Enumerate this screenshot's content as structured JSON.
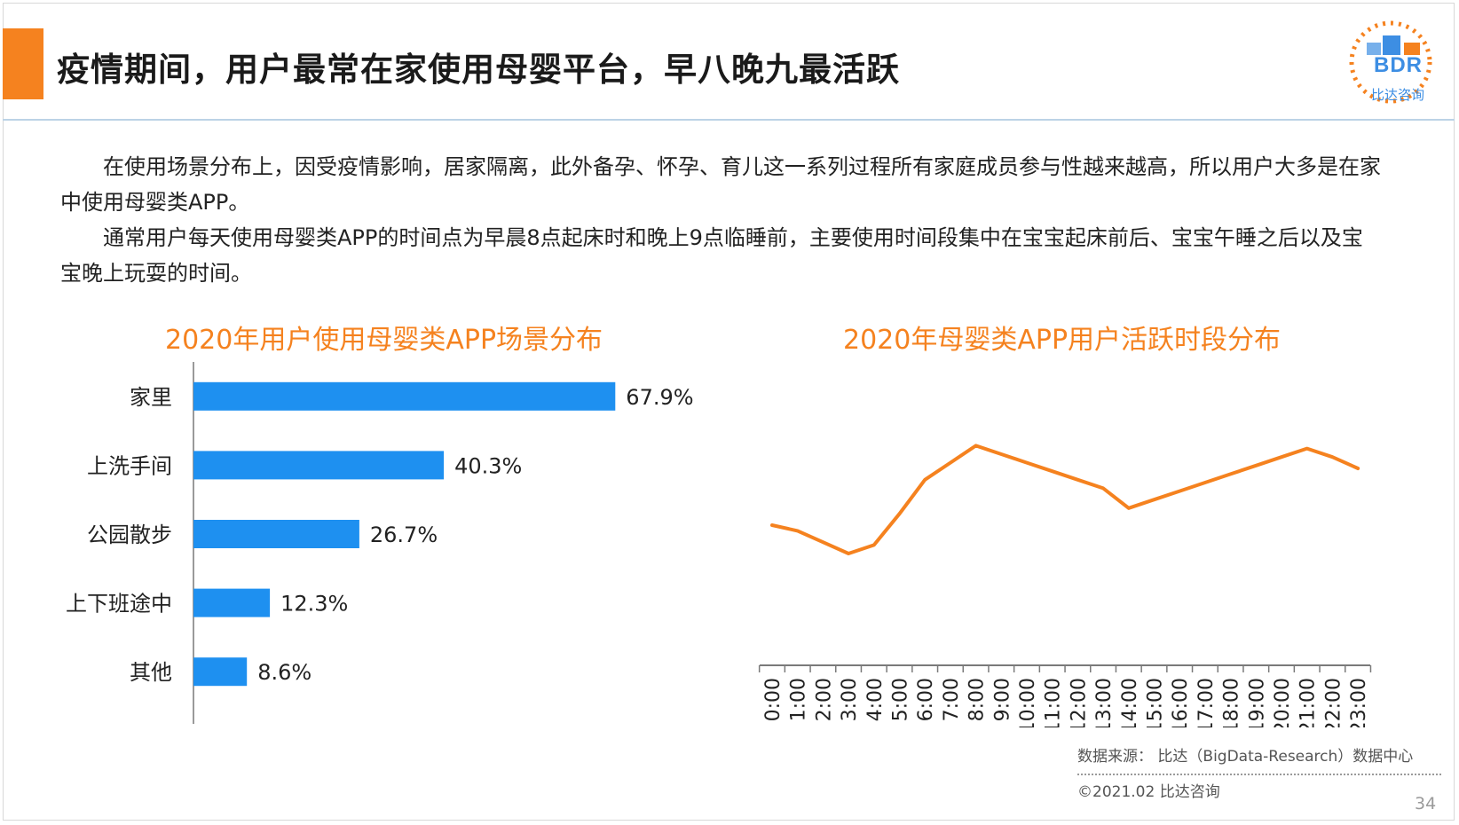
{
  "slide": {
    "title": "疫情期间，用户最常在家使用母婴平台，早八晚九最活跃",
    "logo_text": "BDR",
    "logo_sub": "比达咨询",
    "paragraph1": "在使用场景分布上，因受疫情影响，居家隔离，此外备孕、怀孕、育儿这一系列过程所有家庭成员参与性越来越高，所以用户大多是在家中使用母婴类APP。",
    "paragraph2": "通常用户每天使用母婴类APP的时间点为早晨8点起床时和晚上9点临睡前，主要使用时间段集中在宝宝起床前后、宝宝午睡之后以及宝宝晚上玩耍的时间。",
    "source": "数据来源： 比达（BigData-Research）数据中心",
    "copyright": "©2021.02  比达咨询",
    "page_number": "34"
  },
  "colors": {
    "accent": "#f5821f",
    "bar": "#1e90f0",
    "line": "#f5821f",
    "logo": "#3d8ee3"
  },
  "chart_data": [
    {
      "type": "bar",
      "orientation": "horizontal",
      "title": "2020年用户使用母婴类APP场景分布",
      "categories": [
        "家里",
        "上洗手间",
        "公园散步",
        "上下班途中",
        "其他"
      ],
      "values": [
        67.9,
        40.3,
        26.7,
        12.3,
        8.6
      ],
      "labels": [
        "67.9%",
        "40.3%",
        "26.7%",
        "12.3%",
        "8.6%"
      ],
      "unit": "%",
      "xlim": [
        0,
        100
      ],
      "grid": false
    },
    {
      "type": "line",
      "title": "2020年母婴类APP用户活跃时段分布",
      "categories": [
        "0:00",
        "1:00",
        "2:00",
        "3:00",
        "4:00",
        "5:00",
        "6:00",
        "7:00",
        "8:00",
        "9:00",
        "10:00",
        "11:00",
        "12:00",
        "13:00",
        "14:00",
        "15:00",
        "16:00",
        "17:00",
        "18:00",
        "19:00",
        "20:00",
        "21:00",
        "22:00",
        "23:00"
      ],
      "values": [
        40,
        38,
        34,
        30,
        33,
        44,
        56,
        62,
        68,
        65,
        62,
        59,
        56,
        53,
        46,
        49,
        52,
        55,
        58,
        61,
        64,
        67,
        64,
        60
      ],
      "ylim": [
        0,
        100
      ],
      "y_axis_visible": false,
      "grid": false
    }
  ]
}
